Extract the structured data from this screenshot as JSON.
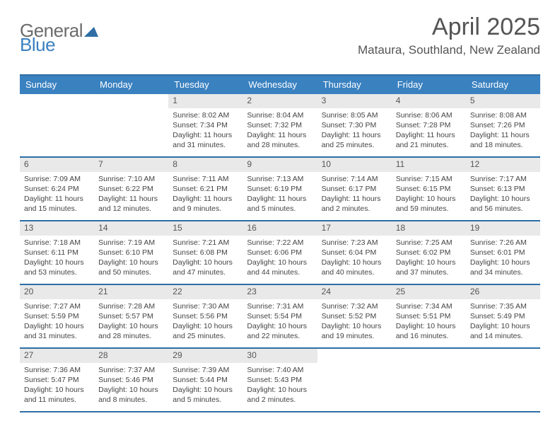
{
  "logo": {
    "part1": "General",
    "part2": "Blue",
    "shape_color": "#2e6ea5"
  },
  "header": {
    "title": "April 2025",
    "location": "Mataura, Southland, New Zealand"
  },
  "colors": {
    "header_bar": "#3a81c0",
    "rule": "#2e6ea5",
    "day_num_bg": "#e9e9e9",
    "day_num_fg": "#555555",
    "text": "#444444",
    "title": "#545454"
  },
  "days_of_week": [
    "Sunday",
    "Monday",
    "Tuesday",
    "Wednesday",
    "Thursday",
    "Friday",
    "Saturday"
  ],
  "weeks": [
    [
      null,
      null,
      {
        "n": "1",
        "sr": "Sunrise: 8:02 AM",
        "ss": "Sunset: 7:34 PM",
        "dl": "Daylight: 11 hours and 31 minutes."
      },
      {
        "n": "2",
        "sr": "Sunrise: 8:04 AM",
        "ss": "Sunset: 7:32 PM",
        "dl": "Daylight: 11 hours and 28 minutes."
      },
      {
        "n": "3",
        "sr": "Sunrise: 8:05 AM",
        "ss": "Sunset: 7:30 PM",
        "dl": "Daylight: 11 hours and 25 minutes."
      },
      {
        "n": "4",
        "sr": "Sunrise: 8:06 AM",
        "ss": "Sunset: 7:28 PM",
        "dl": "Daylight: 11 hours and 21 minutes."
      },
      {
        "n": "5",
        "sr": "Sunrise: 8:08 AM",
        "ss": "Sunset: 7:26 PM",
        "dl": "Daylight: 11 hours and 18 minutes."
      }
    ],
    [
      {
        "n": "6",
        "sr": "Sunrise: 7:09 AM",
        "ss": "Sunset: 6:24 PM",
        "dl": "Daylight: 11 hours and 15 minutes."
      },
      {
        "n": "7",
        "sr": "Sunrise: 7:10 AM",
        "ss": "Sunset: 6:22 PM",
        "dl": "Daylight: 11 hours and 12 minutes."
      },
      {
        "n": "8",
        "sr": "Sunrise: 7:11 AM",
        "ss": "Sunset: 6:21 PM",
        "dl": "Daylight: 11 hours and 9 minutes."
      },
      {
        "n": "9",
        "sr": "Sunrise: 7:13 AM",
        "ss": "Sunset: 6:19 PM",
        "dl": "Daylight: 11 hours and 5 minutes."
      },
      {
        "n": "10",
        "sr": "Sunrise: 7:14 AM",
        "ss": "Sunset: 6:17 PM",
        "dl": "Daylight: 11 hours and 2 minutes."
      },
      {
        "n": "11",
        "sr": "Sunrise: 7:15 AM",
        "ss": "Sunset: 6:15 PM",
        "dl": "Daylight: 10 hours and 59 minutes."
      },
      {
        "n": "12",
        "sr": "Sunrise: 7:17 AM",
        "ss": "Sunset: 6:13 PM",
        "dl": "Daylight: 10 hours and 56 minutes."
      }
    ],
    [
      {
        "n": "13",
        "sr": "Sunrise: 7:18 AM",
        "ss": "Sunset: 6:11 PM",
        "dl": "Daylight: 10 hours and 53 minutes."
      },
      {
        "n": "14",
        "sr": "Sunrise: 7:19 AM",
        "ss": "Sunset: 6:10 PM",
        "dl": "Daylight: 10 hours and 50 minutes."
      },
      {
        "n": "15",
        "sr": "Sunrise: 7:21 AM",
        "ss": "Sunset: 6:08 PM",
        "dl": "Daylight: 10 hours and 47 minutes."
      },
      {
        "n": "16",
        "sr": "Sunrise: 7:22 AM",
        "ss": "Sunset: 6:06 PM",
        "dl": "Daylight: 10 hours and 44 minutes."
      },
      {
        "n": "17",
        "sr": "Sunrise: 7:23 AM",
        "ss": "Sunset: 6:04 PM",
        "dl": "Daylight: 10 hours and 40 minutes."
      },
      {
        "n": "18",
        "sr": "Sunrise: 7:25 AM",
        "ss": "Sunset: 6:02 PM",
        "dl": "Daylight: 10 hours and 37 minutes."
      },
      {
        "n": "19",
        "sr": "Sunrise: 7:26 AM",
        "ss": "Sunset: 6:01 PM",
        "dl": "Daylight: 10 hours and 34 minutes."
      }
    ],
    [
      {
        "n": "20",
        "sr": "Sunrise: 7:27 AM",
        "ss": "Sunset: 5:59 PM",
        "dl": "Daylight: 10 hours and 31 minutes."
      },
      {
        "n": "21",
        "sr": "Sunrise: 7:28 AM",
        "ss": "Sunset: 5:57 PM",
        "dl": "Daylight: 10 hours and 28 minutes."
      },
      {
        "n": "22",
        "sr": "Sunrise: 7:30 AM",
        "ss": "Sunset: 5:56 PM",
        "dl": "Daylight: 10 hours and 25 minutes."
      },
      {
        "n": "23",
        "sr": "Sunrise: 7:31 AM",
        "ss": "Sunset: 5:54 PM",
        "dl": "Daylight: 10 hours and 22 minutes."
      },
      {
        "n": "24",
        "sr": "Sunrise: 7:32 AM",
        "ss": "Sunset: 5:52 PM",
        "dl": "Daylight: 10 hours and 19 minutes."
      },
      {
        "n": "25",
        "sr": "Sunrise: 7:34 AM",
        "ss": "Sunset: 5:51 PM",
        "dl": "Daylight: 10 hours and 16 minutes."
      },
      {
        "n": "26",
        "sr": "Sunrise: 7:35 AM",
        "ss": "Sunset: 5:49 PM",
        "dl": "Daylight: 10 hours and 14 minutes."
      }
    ],
    [
      {
        "n": "27",
        "sr": "Sunrise: 7:36 AM",
        "ss": "Sunset: 5:47 PM",
        "dl": "Daylight: 10 hours and 11 minutes."
      },
      {
        "n": "28",
        "sr": "Sunrise: 7:37 AM",
        "ss": "Sunset: 5:46 PM",
        "dl": "Daylight: 10 hours and 8 minutes."
      },
      {
        "n": "29",
        "sr": "Sunrise: 7:39 AM",
        "ss": "Sunset: 5:44 PM",
        "dl": "Daylight: 10 hours and 5 minutes."
      },
      {
        "n": "30",
        "sr": "Sunrise: 7:40 AM",
        "ss": "Sunset: 5:43 PM",
        "dl": "Daylight: 10 hours and 2 minutes."
      },
      null,
      null,
      null
    ]
  ]
}
